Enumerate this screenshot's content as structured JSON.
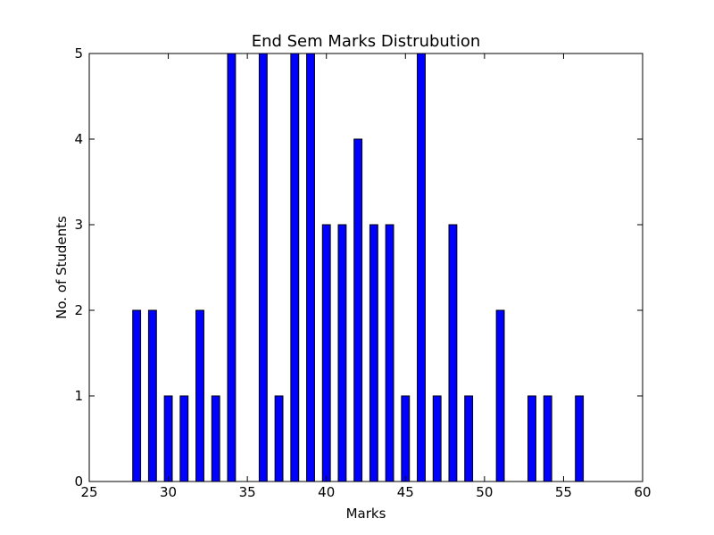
{
  "chart_data": {
    "type": "bar",
    "title": "End Sem Marks Distrubution",
    "xlabel": "Marks",
    "ylabel": "No. of Students",
    "xlim": [
      25,
      60
    ],
    "ylim": [
      0,
      5
    ],
    "x_ticks": [
      25,
      30,
      35,
      40,
      45,
      50,
      55,
      60
    ],
    "y_ticks": [
      0,
      1,
      2,
      3,
      4,
      5
    ],
    "x": [
      26,
      27,
      28,
      29,
      30,
      31,
      32,
      33,
      34,
      35,
      36,
      37,
      38,
      39,
      40,
      41,
      42,
      43,
      44,
      45,
      46,
      47,
      48,
      49,
      50,
      51,
      52,
      53,
      54,
      55,
      56,
      57,
      58,
      59
    ],
    "values": [
      0,
      0,
      2,
      2,
      1,
      1,
      2,
      1,
      5,
      0,
      5,
      1,
      5,
      5,
      3,
      3,
      4,
      3,
      3,
      1,
      5,
      1,
      3,
      1,
      0,
      2,
      0,
      1,
      1,
      0,
      1,
      0,
      0,
      0
    ],
    "bar_width": 0.5,
    "grid": false,
    "bar_color": "#0000ff",
    "edge_color": "#000000"
  }
}
